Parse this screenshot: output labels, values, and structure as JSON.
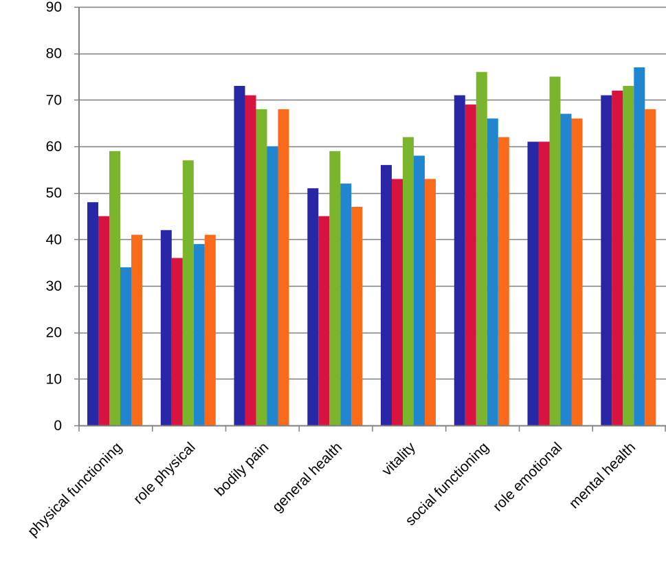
{
  "chart_data": {
    "type": "bar",
    "categories": [
      "physical functioning",
      "role physical",
      "bodily pain",
      "general health",
      "vitality",
      "social functioning",
      "role emotional",
      "mental health"
    ],
    "series": [
      {
        "color": "#2a27a6",
        "values": [
          48,
          42,
          73,
          51,
          56,
          71,
          61,
          71
        ]
      },
      {
        "color": "#d8133f",
        "values": [
          45,
          36,
          71,
          45,
          53,
          69,
          61,
          72
        ]
      },
      {
        "color": "#7ab52d",
        "values": [
          59,
          57,
          68,
          59,
          62,
          76,
          75,
          73
        ]
      },
      {
        "color": "#1f86cf",
        "values": [
          34,
          39,
          60,
          52,
          58,
          66,
          67,
          77
        ]
      },
      {
        "color": "#fb6a1a",
        "values": [
          41,
          41,
          68,
          47,
          53,
          62,
          66,
          68
        ]
      }
    ],
    "y_ticks": [
      "0",
      "10",
      "20",
      "30",
      "40",
      "50",
      "60",
      "70",
      "80",
      "90"
    ],
    "ylim": [
      0,
      90
    ],
    "grid": true,
    "title": "",
    "xlabel": "",
    "ylabel": ""
  }
}
